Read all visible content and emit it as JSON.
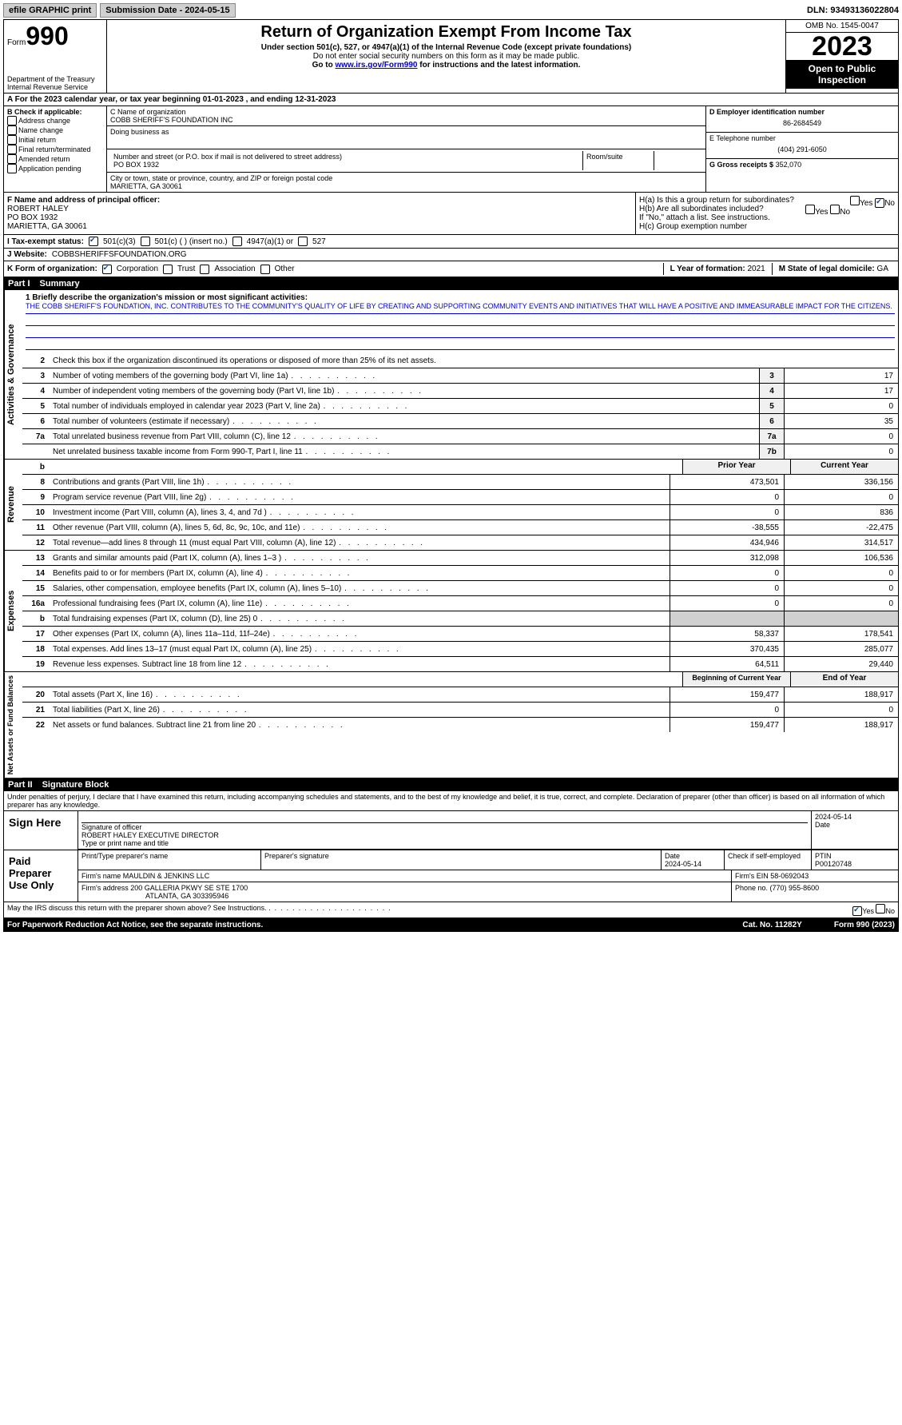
{
  "topbar": {
    "efile": "efile GRAPHIC print",
    "sub_date_label": "Submission Date - 2024-05-15",
    "dln": "DLN: 93493136022804"
  },
  "header": {
    "form_label": "Form",
    "form_number": "990",
    "title": "Return of Organization Exempt From Income Tax",
    "sub1": "Under section 501(c), 527, or 4947(a)(1) of the Internal Revenue Code (except private foundations)",
    "sub2": "Do not enter social security numbers on this form as it may be made public.",
    "sub3_pre": "Go to ",
    "sub3_link": "www.irs.gov/Form990",
    "sub3_post": " for instructions and the latest information.",
    "dept": "Department of the Treasury Internal Revenue Service",
    "omb": "OMB No. 1545-0047",
    "year": "2023",
    "open_pub": "Open to Public Inspection"
  },
  "row_a": "A For the 2023 calendar year, or tax year beginning 01-01-2023    , and ending 12-31-2023",
  "col_b": {
    "label": "B Check if applicable:",
    "items": [
      "Address change",
      "Name change",
      "Initial return",
      "Final return/terminated",
      "Amended return",
      "Application pending"
    ]
  },
  "col_c": {
    "name_label": "C Name of organization",
    "name": "COBB SHERIFF'S FOUNDATION INC",
    "dba_label": "Doing business as",
    "dba": "",
    "addr_label": "Number and street (or P.O. box if mail is not delivered to street address)",
    "addr": "PO BOX 1932",
    "room_label": "Room/suite",
    "room": "",
    "city_label": "City or town, state or province, country, and ZIP or foreign postal code",
    "city": "MARIETTA, GA  30061"
  },
  "col_d": {
    "ein_label": "D Employer identification number",
    "ein": "86-2684549",
    "phone_label": "E Telephone number",
    "phone": "(404) 291-6050",
    "gross_label": "G Gross receipts $",
    "gross": "352,070"
  },
  "col_f": {
    "label": "F  Name and address of principal officer:",
    "name": "ROBERT HALEY",
    "addr1": "PO BOX 1932",
    "addr2": "MARIETTA, GA  30061"
  },
  "col_h": {
    "ha": "H(a)  Is this a group return for subordinates?",
    "ha_yes": "Yes",
    "ha_no": "No",
    "hb": "H(b)  Are all subordinates included?",
    "hb_yes": "Yes",
    "hb_no": "No",
    "hb_note": "If \"No,\" attach a list. See instructions.",
    "hc": "H(c)  Group exemption number ",
    "hc_val": ""
  },
  "row_i": {
    "label": "I   Tax-exempt status:",
    "opt1": "501(c)(3)",
    "opt2": "501(c) (  ) (insert no.)",
    "opt3": "4947(a)(1) or",
    "opt4": "527"
  },
  "row_j": {
    "label": "J   Website: ",
    "val": "COBBSHERIFFSFOUNDATION.ORG"
  },
  "row_k": {
    "label": "K Form of organization:",
    "opts": [
      "Corporation",
      "Trust",
      "Association",
      "Other"
    ],
    "l_label": "L Year of formation: ",
    "l_val": "2021",
    "m_label": "M State of legal domicile: ",
    "m_val": "GA"
  },
  "part1": {
    "hdr_num": "Part I",
    "hdr_title": "Summary",
    "mission_label": "1   Briefly describe the organization's mission or most significant activities:",
    "mission": "THE COBB SHERIFF'S FOUNDATION, INC. CONTRIBUTES TO THE COMMUNITY'S QUALITY OF LIFE BY CREATING AND SUPPORTING COMMUNITY EVENTS AND INITIATIVES THAT WILL HAVE A POSITIVE AND IMMEASURABLE IMPACT FOR THE CITIZENS.",
    "line2": "Check this box      if the organization discontinued its operations or disposed of more than 25% of its net assets.",
    "prior_hdr": "Prior Year",
    "current_hdr": "Current Year",
    "begin_hdr": "Beginning of Current Year",
    "end_hdr": "End of Year"
  },
  "gov_lines": [
    {
      "n": "3",
      "t": "Number of voting members of the governing body (Part VI, line 1a)",
      "b": "3",
      "v": "17"
    },
    {
      "n": "4",
      "t": "Number of independent voting members of the governing body (Part VI, line 1b)",
      "b": "4",
      "v": "17"
    },
    {
      "n": "5",
      "t": "Total number of individuals employed in calendar year 2023 (Part V, line 2a)",
      "b": "5",
      "v": "0"
    },
    {
      "n": "6",
      "t": "Total number of volunteers (estimate if necessary)",
      "b": "6",
      "v": "35"
    },
    {
      "n": "7a",
      "t": "Total unrelated business revenue from Part VIII, column (C), line 12",
      "b": "7a",
      "v": "0"
    },
    {
      "n": "",
      "t": "Net unrelated business taxable income from Form 990-T, Part I, line 11",
      "b": "7b",
      "v": "0"
    }
  ],
  "rev_lines": [
    {
      "n": "8",
      "t": "Contributions and grants (Part VIII, line 1h)",
      "p": "473,501",
      "c": "336,156"
    },
    {
      "n": "9",
      "t": "Program service revenue (Part VIII, line 2g)",
      "p": "0",
      "c": "0"
    },
    {
      "n": "10",
      "t": "Investment income (Part VIII, column (A), lines 3, 4, and 7d )",
      "p": "0",
      "c": "836"
    },
    {
      "n": "11",
      "t": "Other revenue (Part VIII, column (A), lines 5, 6d, 8c, 9c, 10c, and 11e)",
      "p": "-38,555",
      "c": "-22,475"
    },
    {
      "n": "12",
      "t": "Total revenue—add lines 8 through 11 (must equal Part VIII, column (A), line 12)",
      "p": "434,946",
      "c": "314,517"
    }
  ],
  "exp_lines": [
    {
      "n": "13",
      "t": "Grants and similar amounts paid (Part IX, column (A), lines 1–3 )",
      "p": "312,098",
      "c": "106,536"
    },
    {
      "n": "14",
      "t": "Benefits paid to or for members (Part IX, column (A), line 4)",
      "p": "0",
      "c": "0"
    },
    {
      "n": "15",
      "t": "Salaries, other compensation, employee benefits (Part IX, column (A), lines 5–10)",
      "p": "0",
      "c": "0"
    },
    {
      "n": "16a",
      "t": "Professional fundraising fees (Part IX, column (A), line 11e)",
      "p": "0",
      "c": "0"
    },
    {
      "n": "b",
      "t": "Total fundraising expenses (Part IX, column (D), line 25) 0",
      "p": "",
      "c": "",
      "shaded": true
    },
    {
      "n": "17",
      "t": "Other expenses (Part IX, column (A), lines 11a–11d, 11f–24e)",
      "p": "58,337",
      "c": "178,541"
    },
    {
      "n": "18",
      "t": "Total expenses. Add lines 13–17 (must equal Part IX, column (A), line 25)",
      "p": "370,435",
      "c": "285,077"
    },
    {
      "n": "19",
      "t": "Revenue less expenses. Subtract line 18 from line 12",
      "p": "64,511",
      "c": "29,440"
    }
  ],
  "net_lines": [
    {
      "n": "20",
      "t": "Total assets (Part X, line 16)",
      "p": "159,477",
      "c": "188,917"
    },
    {
      "n": "21",
      "t": "Total liabilities (Part X, line 26)",
      "p": "0",
      "c": "0"
    },
    {
      "n": "22",
      "t": "Net assets or fund balances. Subtract line 21 from line 20",
      "p": "159,477",
      "c": "188,917"
    }
  ],
  "part2": {
    "hdr_num": "Part II",
    "hdr_title": "Signature Block",
    "intro": "Under penalties of perjury, I declare that I have examined this return, including accompanying schedules and statements, and to the best of my knowledge and belief, it is true, correct, and complete. Declaration of preparer (other than officer) is based on all information of which preparer has any knowledge."
  },
  "sign_here": {
    "label": "Sign Here",
    "sig_label": "Signature of officer",
    "name": "ROBERT HALEY  EXECUTIVE DIRECTOR",
    "name_label": "Type or print name and title",
    "date": "2024-05-14",
    "date_label": "Date"
  },
  "paid_prep": {
    "label": "Paid Preparer Use Only",
    "prep_name_label": "Print/Type preparer's name",
    "prep_name": "",
    "prep_sig_label": "Preparer's signature",
    "date_label": "Date",
    "date": "2024-05-14",
    "self_label": "Check      if self-employed",
    "ptin_label": "PTIN",
    "ptin": "P00120748",
    "firm_name_label": "Firm's name    ",
    "firm_name": "MAULDIN & JENKINS LLC",
    "firm_ein_label": "Firm's EIN  ",
    "firm_ein": "58-0692043",
    "firm_addr_label": "Firm's address ",
    "firm_addr1": "200 GALLERIA PKWY SE STE 1700",
    "firm_addr2": "ATLANTA, GA  303395946",
    "phone_label": "Phone no. ",
    "phone": "(770) 955-8600"
  },
  "discuss": {
    "text": "May the IRS discuss this return with the preparer shown above? See Instructions.",
    "yes": "Yes",
    "no": "No"
  },
  "footer": {
    "left": "For Paperwork Reduction Act Notice, see the separate instructions.",
    "mid": "Cat. No. 11282Y",
    "right": "Form 990 (2023)"
  },
  "vert_labels": {
    "gov": "Activities & Governance",
    "rev": "Revenue",
    "exp": "Expenses",
    "net": "Net Assets or Fund Balances"
  }
}
